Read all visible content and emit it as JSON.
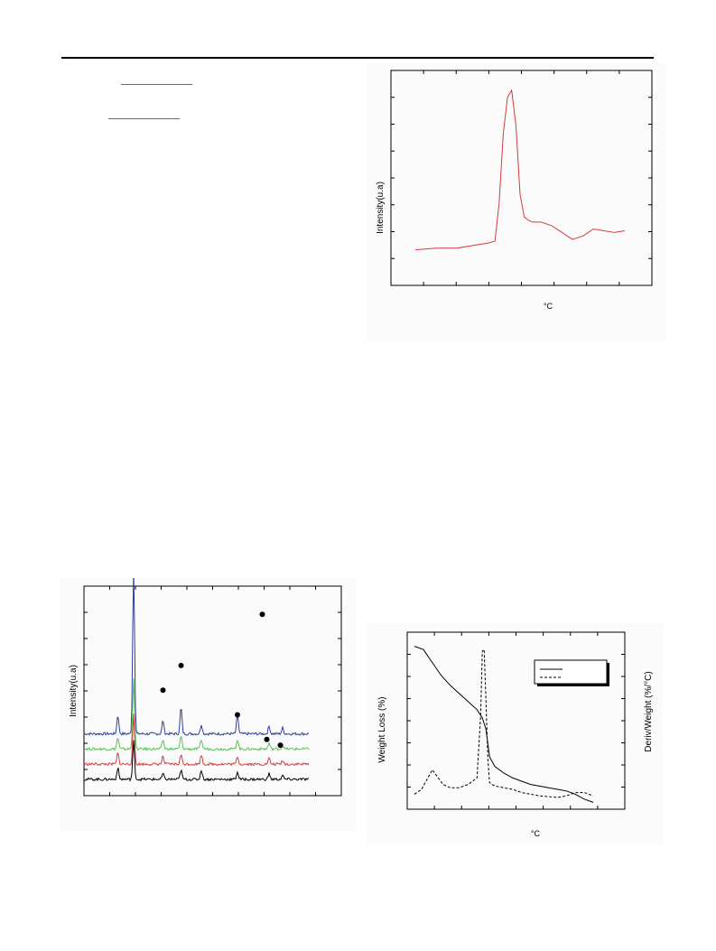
{
  "page": {
    "accent_red": "#d63a3a",
    "accent_blue": "#2b3f9e",
    "accent_green": "#55c455",
    "line_black": "#000000"
  },
  "figures": {
    "tpr": {
      "ylabel": "Intensity(u.a)",
      "xlabel": "°C"
    },
    "xrd": {
      "ylabel": "Intensity(u.a)",
      "marker": "filled-circle"
    },
    "tga": {
      "ylabel_left": "Weight Loss (%)",
      "ylabel_right": "Deriv/Weight (%/°C)",
      "xlabel": "°C"
    }
  },
  "chart_data": [
    {
      "type": "line",
      "id": "tpr",
      "title": "",
      "xlabel": "°C",
      "ylabel": "Intensity(u.a)",
      "xlim": [
        0,
        100
      ],
      "ylim": [
        0,
        100
      ],
      "series": [
        {
          "color": "#d63a3a",
          "x": [
            0,
            10,
            20,
            30,
            35,
            38,
            40,
            42,
            44,
            46,
            48,
            50,
            52,
            54,
            56,
            58,
            60,
            65,
            70,
            75,
            80,
            85,
            90,
            95,
            100
          ],
          "y": [
            8,
            9,
            9,
            11,
            12,
            13,
            35,
            75,
            96,
            100,
            80,
            40,
            27,
            25,
            24,
            24,
            24,
            22,
            18,
            14,
            16,
            20,
            19,
            18,
            19
          ]
        }
      ]
    },
    {
      "type": "line",
      "id": "xrd",
      "title": "",
      "xlabel": "",
      "ylabel": "Intensity(u.a)",
      "xlim": [
        0,
        100
      ],
      "ylim": [
        0,
        100
      ],
      "marker_positions": [
        {
          "x": 35,
          "y": 48
        },
        {
          "x": 43,
          "y": 61
        },
        {
          "x": 68,
          "y": 35
        },
        {
          "x": 81,
          "y": 22
        },
        {
          "x": 87,
          "y": 19
        },
        {
          "x": 79,
          "y": 88
        }
      ],
      "series": [
        {
          "color": "#2b3f9e",
          "peaks": [
            [
              15,
              10
            ],
            [
              22,
              88
            ],
            [
              35,
              7
            ],
            [
              43,
              14
            ],
            [
              52,
              5
            ],
            [
              68,
              10
            ],
            [
              82,
              4
            ],
            [
              88,
              3
            ]
          ],
          "baseline": 25
        },
        {
          "color": "#55c455",
          "peaks": [
            [
              15,
              6
            ],
            [
              22,
              38
            ],
            [
              35,
              5
            ],
            [
              43,
              7
            ],
            [
              52,
              5
            ],
            [
              68,
              5
            ],
            [
              82,
              3
            ],
            [
              88,
              2
            ]
          ],
          "baseline": 17
        },
        {
          "color": "#d63a3a",
          "peaks": [
            [
              15,
              6
            ],
            [
              22,
              26
            ],
            [
              35,
              4
            ],
            [
              43,
              5
            ],
            [
              52,
              5
            ],
            [
              68,
              4
            ],
            [
              82,
              3
            ],
            [
              88,
              2
            ]
          ],
          "baseline": 9
        },
        {
          "color": "#000000",
          "peaks": [
            [
              15,
              6
            ],
            [
              22,
              20
            ],
            [
              35,
              3
            ],
            [
              43,
              5
            ],
            [
              52,
              5
            ],
            [
              68,
              4
            ],
            [
              82,
              3
            ],
            [
              88,
              2
            ]
          ],
          "baseline": 1
        }
      ]
    },
    {
      "type": "line",
      "id": "tga",
      "title": "",
      "xlabel": "°C",
      "ylabel": "Weight Loss (%)",
      "y2label": "Deriv/Weight (%/°C)",
      "xlim": [
        0,
        100
      ],
      "ylim": [
        0,
        100
      ],
      "legend": "top-right",
      "series": [
        {
          "style": "solid",
          "x": [
            0,
            5,
            10,
            15,
            20,
            25,
            30,
            35,
            38,
            40,
            42,
            45,
            50,
            55,
            60,
            65,
            70,
            75,
            80,
            85,
            90,
            95,
            100
          ],
          "y": [
            98,
            96,
            88,
            80,
            74,
            69,
            64,
            59,
            54,
            47,
            30,
            24,
            20,
            17,
            15,
            13,
            12,
            11,
            10,
            9,
            7,
            4,
            2
          ]
        },
        {
          "style": "dashed",
          "x": [
            0,
            4,
            8,
            10,
            12,
            16,
            20,
            25,
            30,
            35,
            37,
            38,
            39,
            40,
            41,
            42,
            45,
            50,
            55,
            60,
            70,
            80,
            85,
            90,
            95,
            100
          ],
          "y": [
            7,
            10,
            18,
            22,
            19,
            13,
            11,
            11,
            13,
            17,
            55,
            95,
            96,
            65,
            30,
            14,
            12,
            11,
            10,
            8,
            6,
            5,
            6,
            8,
            8,
            6
          ]
        }
      ]
    }
  ]
}
